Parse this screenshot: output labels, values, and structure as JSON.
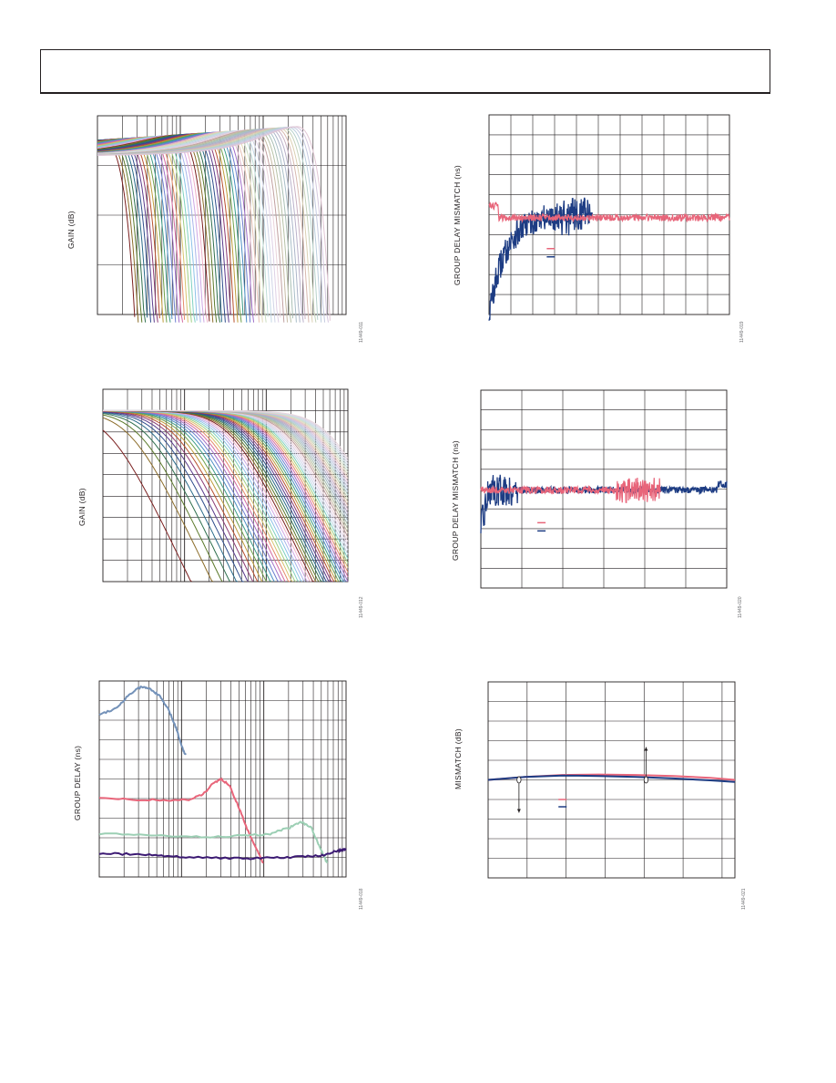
{
  "header": {},
  "colors": {
    "pink": "#e8657a",
    "navy": "#1d3c83",
    "steel": "#7391b8",
    "mint": "#9ccfb4",
    "purple": "#3c1a73",
    "grid": "#231f20",
    "tan": "#dcc9a2"
  },
  "chart_data": [
    {
      "id": "p1",
      "type": "line",
      "ylabel": "GAIN (dB)",
      "figure_number": "11449-011",
      "grid": true,
      "xscale": "log",
      "xlim": [
        1,
        1000
      ],
      "ylim": [
        -20,
        5
      ],
      "series_count": 64,
      "series_first_cutoff": 1.3,
      "series_last_cutoff": 290,
      "peaking_db": 2.5,
      "legend": null
    },
    {
      "id": "p2",
      "type": "line",
      "ylabel": "GROUP DELAY MISMATCH (ns)",
      "figure_number": "11449-019",
      "grid": true,
      "xlim": [
        0,
        100
      ],
      "ylim": [
        -5,
        5
      ],
      "legend_position": "center",
      "series": [
        {
          "color_key": "pink",
          "description": "flat trace near -0.2 ns with noise"
        },
        {
          "color_key": "navy",
          "description": "rises from -5 ns to 0 ns near 25% of span"
        }
      ]
    },
    {
      "id": "p3",
      "type": "line",
      "ylabel": "GAIN (dB)",
      "figure_number": "11449-012",
      "grid": true,
      "xscale": "log",
      "xlim": [
        1,
        1000
      ],
      "ylim": [
        -80,
        10
      ],
      "series_count": 72,
      "series_first_cutoff": 1.2,
      "series_last_cutoff": 620,
      "legend": null
    },
    {
      "id": "p4",
      "type": "line",
      "ylabel": "GROUP DELAY MISMATCH (ns)",
      "figure_number": "11449-020",
      "grid": true,
      "xlim": [
        0,
        100
      ],
      "ylim": [
        -5,
        5
      ],
      "legend_position": "center",
      "series": [
        {
          "color_key": "pink",
          "description": "flat trace with noisy burst near 60-72% of span"
        },
        {
          "color_key": "navy",
          "description": "flat trace, settles after initial transient"
        }
      ]
    },
    {
      "id": "p5",
      "type": "line",
      "ylabel": "GROUP DELAY (ns)",
      "figure_number": "11449-018",
      "grid": true,
      "xscale": "log",
      "xlim": [
        1,
        1000
      ],
      "ylim": [
        0,
        1000
      ],
      "legend": null,
      "series": [
        {
          "color_key": "steel",
          "x": [
            1,
            1.6,
            2.3,
            3.2,
            4.2,
            5.5,
            7,
            8.6,
            10.2,
            11.3
          ],
          "y": [
            830,
            860,
            930,
            970,
            960,
            920,
            850,
            760,
            660,
            620
          ]
        },
        {
          "color_key": "pink",
          "x": [
            1,
            3,
            7,
            12,
            18,
            24,
            30,
            38,
            48,
            62,
            80,
            98
          ],
          "y": [
            405,
            395,
            390,
            395,
            420,
            475,
            500,
            470,
            370,
            250,
            150,
            70
          ]
        },
        {
          "color_key": "mint",
          "x": [
            1,
            5,
            20,
            60,
            120,
            200,
            290,
            380,
            480,
            590
          ],
          "y": [
            220,
            210,
            205,
            210,
            220,
            250,
            280,
            250,
            150,
            70
          ]
        },
        {
          "color_key": "purple",
          "x": [
            1,
            4,
            12,
            60,
            200,
            500,
            800,
            1000
          ],
          "y": [
            120,
            115,
            100,
            95,
            100,
            110,
            135,
            140
          ]
        }
      ]
    },
    {
      "id": "p6",
      "type": "line",
      "ylabel": "MISMATCH (dB)",
      "figure_number": "11449-021",
      "grid": true,
      "xlim": [
        0,
        100
      ],
      "ylim": [
        -1,
        1
      ],
      "legend_position": "center-left",
      "series": [
        {
          "color_key": "pink",
          "x": [
            0,
            15,
            30,
            45,
            60,
            75,
            90,
            100
          ],
          "y": [
            0.0,
            0.03,
            0.05,
            0.055,
            0.05,
            0.04,
            0.02,
            0.0
          ]
        },
        {
          "color_key": "navy",
          "x": [
            0,
            15,
            30,
            45,
            60,
            75,
            90,
            100
          ],
          "y": [
            0.0,
            0.03,
            0.045,
            0.04,
            0.03,
            0.015,
            -0.005,
            -0.02
          ]
        }
      ],
      "markers": [
        {
          "x": 12.5,
          "y": 0.0,
          "arrow": "down"
        },
        {
          "x": 64,
          "y": 0.0,
          "arrow": "up"
        }
      ]
    }
  ]
}
